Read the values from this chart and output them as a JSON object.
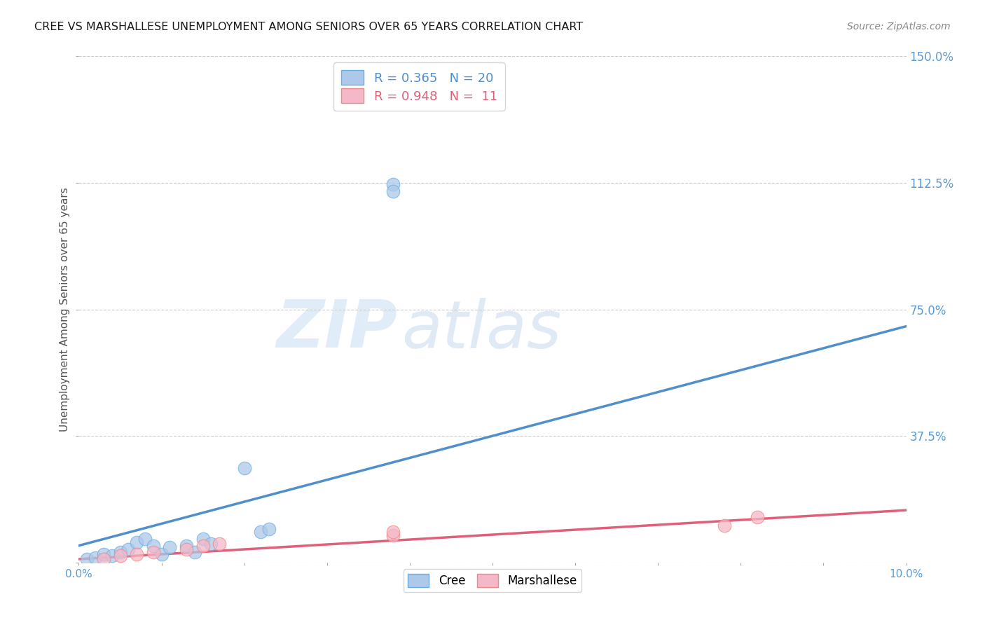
{
  "title": "CREE VS MARSHALLESE UNEMPLOYMENT AMONG SENIORS OVER 65 YEARS CORRELATION CHART",
  "source": "Source: ZipAtlas.com",
  "ylabel": "Unemployment Among Seniors over 65 years",
  "xlim": [
    0.0,
    0.1
  ],
  "ylim": [
    0.0,
    1.5
  ],
  "ytick_positions": [
    0.0,
    0.375,
    0.75,
    1.125,
    1.5
  ],
  "ytick_labels": [
    "",
    "37.5%",
    "75.0%",
    "112.5%",
    "150.0%"
  ],
  "cree_color": "#adc8e8",
  "cree_edge_color": "#6aaee8",
  "cree_line_color": "#4f8fcc",
  "marshallese_color": "#f5b8c8",
  "marshallese_edge_color": "#ee8888",
  "marshallese_line_color": "#e0607a",
  "legend_cree_R": "0.365",
  "legend_cree_N": "20",
  "legend_marshallese_R": "0.948",
  "legend_marshallese_N": "11",
  "cree_x": [
    0.001,
    0.002,
    0.003,
    0.004,
    0.005,
    0.006,
    0.007,
    0.008,
    0.009,
    0.01,
    0.011,
    0.013,
    0.014,
    0.015,
    0.016,
    0.02,
    0.022,
    0.023,
    0.038,
    0.038
  ],
  "cree_y": [
    0.01,
    0.015,
    0.025,
    0.02,
    0.03,
    0.04,
    0.06,
    0.07,
    0.05,
    0.025,
    0.045,
    0.05,
    0.03,
    0.07,
    0.055,
    0.28,
    0.09,
    0.1,
    1.12,
    1.1
  ],
  "marshallese_x": [
    0.003,
    0.005,
    0.007,
    0.009,
    0.013,
    0.015,
    0.017,
    0.038,
    0.038,
    0.078,
    0.082
  ],
  "marshallese_y": [
    0.01,
    0.02,
    0.025,
    0.03,
    0.04,
    0.05,
    0.055,
    0.08,
    0.09,
    0.11,
    0.135
  ],
  "watermark_zip": "ZIP",
  "watermark_atlas": "atlas",
  "background_color": "#ffffff",
  "grid_color": "#cccccc",
  "title_color": "#1a1a1a",
  "axis_label_color": "#555555",
  "tick_label_color": "#5b9bd5",
  "right_tick_color": "#5b9bd5"
}
